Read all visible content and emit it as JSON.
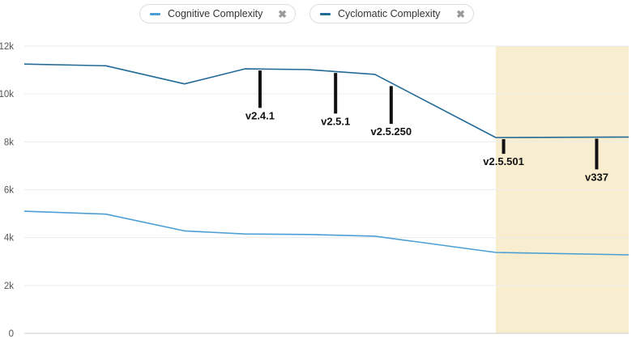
{
  "legend": {
    "items": [
      {
        "label": "Cognitive Complexity",
        "color": "#4b9fd5",
        "remove_icon": "close-icon"
      },
      {
        "label": "Cyclomatic Complexity",
        "color": "#236a97",
        "remove_icon": "close-icon"
      }
    ]
  },
  "chart_data": {
    "type": "line",
    "y_ticks": [
      "0",
      "2k",
      "4k",
      "6k",
      "8k",
      "10k",
      "12k"
    ],
    "ylim": [
      0,
      12000
    ],
    "xlim": [
      0,
      100
    ],
    "grid": true,
    "legend_position": "top-center",
    "highlight_band": {
      "x_start": 78,
      "x_end": 100,
      "color": "#f8edcf"
    },
    "series": [
      {
        "name": "Cyclomatic Complexity",
        "color": "#236a97",
        "points": [
          {
            "x": 0,
            "y": 11250
          },
          {
            "x": 13.5,
            "y": 11180
          },
          {
            "x": 26.5,
            "y": 10420
          },
          {
            "x": 36.5,
            "y": 11050
          },
          {
            "x": 47,
            "y": 11020
          },
          {
            "x": 58,
            "y": 10820
          },
          {
            "x": 78,
            "y": 8180
          },
          {
            "x": 100,
            "y": 8200
          }
        ]
      },
      {
        "name": "Cognitive Complexity",
        "color": "#4b9fd5",
        "points": [
          {
            "x": 0,
            "y": 5100
          },
          {
            "x": 13.5,
            "y": 4980
          },
          {
            "x": 26.5,
            "y": 4280
          },
          {
            "x": 36.5,
            "y": 4150
          },
          {
            "x": 47,
            "y": 4130
          },
          {
            "x": 58,
            "y": 4060
          },
          {
            "x": 78,
            "y": 3380
          },
          {
            "x": 100,
            "y": 3280
          }
        ]
      }
    ],
    "events": [
      {
        "label": "v2.4.1",
        "x": 39,
        "top": 11050,
        "bottom": 9420
      },
      {
        "label": "v2.5.1",
        "x": 51.5,
        "top": 10950,
        "bottom": 9180
      },
      {
        "label": "v2.5.250",
        "x": 60.7,
        "top": 10400,
        "bottom": 8750
      },
      {
        "label": "v2.5.501",
        "x": 79.3,
        "top": 8180,
        "bottom": 7500
      },
      {
        "label": "v337",
        "x": 94.7,
        "top": 8200,
        "bottom": 6850
      }
    ]
  }
}
